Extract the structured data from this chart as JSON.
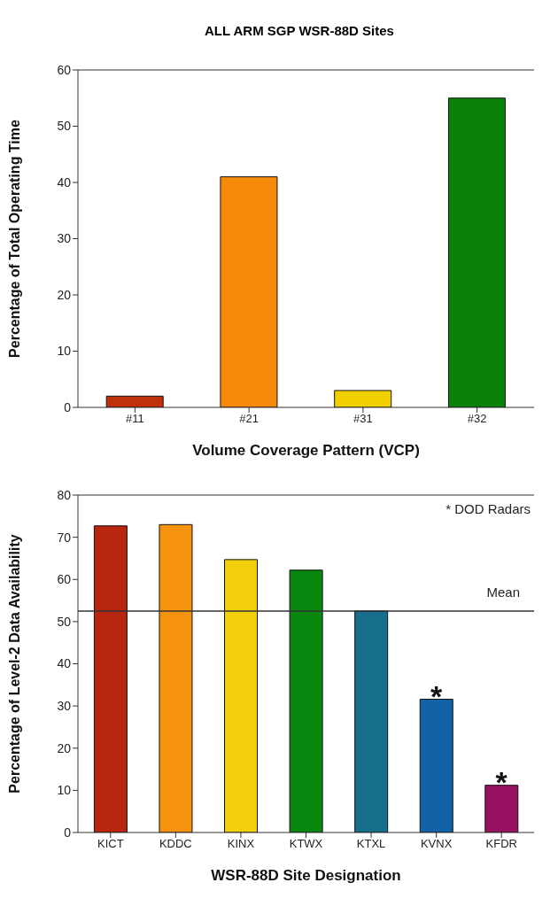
{
  "chart_data": [
    {
      "type": "bar",
      "title": "ALL ARM SGP WSR-88D Sites",
      "xlabel": "Volume Coverage Pattern (VCP)",
      "ylabel": "Percentage of Total Operating Time",
      "categories": [
        "#11",
        "#21",
        "#31",
        "#32"
      ],
      "values": [
        2,
        41,
        3,
        55
      ],
      "colors": [
        "#c0300c",
        "#f58a0a",
        "#f2d000",
        "#0a820a"
      ],
      "ylim": [
        0,
        60
      ],
      "yticks": [
        0,
        10,
        20,
        30,
        40,
        50,
        60
      ],
      "grid": false
    },
    {
      "type": "bar",
      "xlabel": "WSR-88D Site Designation",
      "ylabel": "Percentage of Level-2 Data Availability",
      "categories": [
        "KICT",
        "KDDC",
        "KINX",
        "KTWX",
        "KTXL",
        "KVNX",
        "KFDR"
      ],
      "values": [
        72.7,
        73,
        64.7,
        62.2,
        52.5,
        31.6,
        11.2
      ],
      "colors": [
        "#b8260e",
        "#f5920e",
        "#f2cf0a",
        "#0a870f",
        "#156e8c",
        "#1262a8",
        "#96115f"
      ],
      "ylim": [
        0,
        80
      ],
      "yticks": [
        0,
        10,
        20,
        30,
        40,
        50,
        60,
        70,
        80
      ],
      "grid": false,
      "ref_lines": [
        {
          "axis": "y",
          "value": 52.5,
          "label": "Mean",
          "color": "#333333"
        }
      ],
      "annotations": [
        "* DOD Radars",
        {
          "text": "*",
          "x": "KVNX",
          "y": 31.6
        },
        {
          "text": "*",
          "x": "KFDR",
          "y": 11.2
        }
      ]
    }
  ]
}
